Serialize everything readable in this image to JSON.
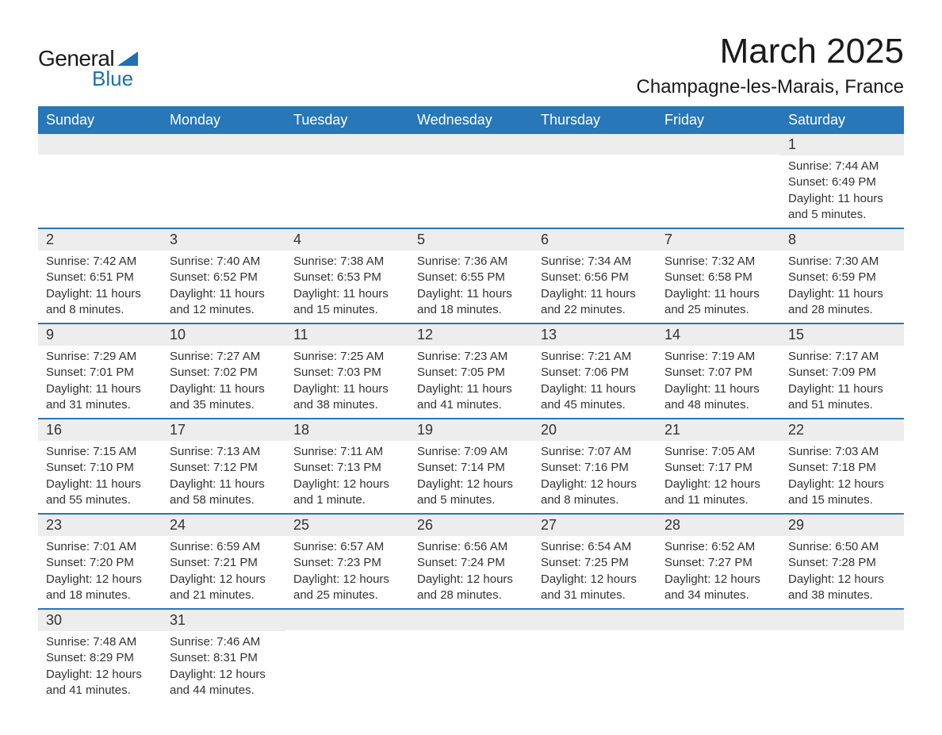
{
  "branding": {
    "word1": "General",
    "word2": "Blue",
    "triangle_color": "#1f6fb2",
    "text_dark": "#1a1a1a",
    "text_blue": "#1f6fb2"
  },
  "header": {
    "title": "March 2025",
    "location": "Champagne-les-Marais, France",
    "title_fontsize": 44,
    "location_fontsize": 24
  },
  "calendar": {
    "header_bg": "#2877b8",
    "header_fg": "#ffffff",
    "daynum_bg": "#ededed",
    "rule_color": "#2877b8",
    "body_fontsize": 15,
    "day_fontsize": 18,
    "days_of_week": [
      "Sunday",
      "Monday",
      "Tuesday",
      "Wednesday",
      "Thursday",
      "Friday",
      "Saturday"
    ],
    "weeks": [
      [
        {
          "day": "",
          "sunrise": "",
          "sunset": "",
          "daylight": ""
        },
        {
          "day": "",
          "sunrise": "",
          "sunset": "",
          "daylight": ""
        },
        {
          "day": "",
          "sunrise": "",
          "sunset": "",
          "daylight": ""
        },
        {
          "day": "",
          "sunrise": "",
          "sunset": "",
          "daylight": ""
        },
        {
          "day": "",
          "sunrise": "",
          "sunset": "",
          "daylight": ""
        },
        {
          "day": "",
          "sunrise": "",
          "sunset": "",
          "daylight": ""
        },
        {
          "day": "1",
          "sunrise": "Sunrise: 7:44 AM",
          "sunset": "Sunset: 6:49 PM",
          "daylight": "Daylight: 11 hours and 5 minutes."
        }
      ],
      [
        {
          "day": "2",
          "sunrise": "Sunrise: 7:42 AM",
          "sunset": "Sunset: 6:51 PM",
          "daylight": "Daylight: 11 hours and 8 minutes."
        },
        {
          "day": "3",
          "sunrise": "Sunrise: 7:40 AM",
          "sunset": "Sunset: 6:52 PM",
          "daylight": "Daylight: 11 hours and 12 minutes."
        },
        {
          "day": "4",
          "sunrise": "Sunrise: 7:38 AM",
          "sunset": "Sunset: 6:53 PM",
          "daylight": "Daylight: 11 hours and 15 minutes."
        },
        {
          "day": "5",
          "sunrise": "Sunrise: 7:36 AM",
          "sunset": "Sunset: 6:55 PM",
          "daylight": "Daylight: 11 hours and 18 minutes."
        },
        {
          "day": "6",
          "sunrise": "Sunrise: 7:34 AM",
          "sunset": "Sunset: 6:56 PM",
          "daylight": "Daylight: 11 hours and 22 minutes."
        },
        {
          "day": "7",
          "sunrise": "Sunrise: 7:32 AM",
          "sunset": "Sunset: 6:58 PM",
          "daylight": "Daylight: 11 hours and 25 minutes."
        },
        {
          "day": "8",
          "sunrise": "Sunrise: 7:30 AM",
          "sunset": "Sunset: 6:59 PM",
          "daylight": "Daylight: 11 hours and 28 minutes."
        }
      ],
      [
        {
          "day": "9",
          "sunrise": "Sunrise: 7:29 AM",
          "sunset": "Sunset: 7:01 PM",
          "daylight": "Daylight: 11 hours and 31 minutes."
        },
        {
          "day": "10",
          "sunrise": "Sunrise: 7:27 AM",
          "sunset": "Sunset: 7:02 PM",
          "daylight": "Daylight: 11 hours and 35 minutes."
        },
        {
          "day": "11",
          "sunrise": "Sunrise: 7:25 AM",
          "sunset": "Sunset: 7:03 PM",
          "daylight": "Daylight: 11 hours and 38 minutes."
        },
        {
          "day": "12",
          "sunrise": "Sunrise: 7:23 AM",
          "sunset": "Sunset: 7:05 PM",
          "daylight": "Daylight: 11 hours and 41 minutes."
        },
        {
          "day": "13",
          "sunrise": "Sunrise: 7:21 AM",
          "sunset": "Sunset: 7:06 PM",
          "daylight": "Daylight: 11 hours and 45 minutes."
        },
        {
          "day": "14",
          "sunrise": "Sunrise: 7:19 AM",
          "sunset": "Sunset: 7:07 PM",
          "daylight": "Daylight: 11 hours and 48 minutes."
        },
        {
          "day": "15",
          "sunrise": "Sunrise: 7:17 AM",
          "sunset": "Sunset: 7:09 PM",
          "daylight": "Daylight: 11 hours and 51 minutes."
        }
      ],
      [
        {
          "day": "16",
          "sunrise": "Sunrise: 7:15 AM",
          "sunset": "Sunset: 7:10 PM",
          "daylight": "Daylight: 11 hours and 55 minutes."
        },
        {
          "day": "17",
          "sunrise": "Sunrise: 7:13 AM",
          "sunset": "Sunset: 7:12 PM",
          "daylight": "Daylight: 11 hours and 58 minutes."
        },
        {
          "day": "18",
          "sunrise": "Sunrise: 7:11 AM",
          "sunset": "Sunset: 7:13 PM",
          "daylight": "Daylight: 12 hours and 1 minute."
        },
        {
          "day": "19",
          "sunrise": "Sunrise: 7:09 AM",
          "sunset": "Sunset: 7:14 PM",
          "daylight": "Daylight: 12 hours and 5 minutes."
        },
        {
          "day": "20",
          "sunrise": "Sunrise: 7:07 AM",
          "sunset": "Sunset: 7:16 PM",
          "daylight": "Daylight: 12 hours and 8 minutes."
        },
        {
          "day": "21",
          "sunrise": "Sunrise: 7:05 AM",
          "sunset": "Sunset: 7:17 PM",
          "daylight": "Daylight: 12 hours and 11 minutes."
        },
        {
          "day": "22",
          "sunrise": "Sunrise: 7:03 AM",
          "sunset": "Sunset: 7:18 PM",
          "daylight": "Daylight: 12 hours and 15 minutes."
        }
      ],
      [
        {
          "day": "23",
          "sunrise": "Sunrise: 7:01 AM",
          "sunset": "Sunset: 7:20 PM",
          "daylight": "Daylight: 12 hours and 18 minutes."
        },
        {
          "day": "24",
          "sunrise": "Sunrise: 6:59 AM",
          "sunset": "Sunset: 7:21 PM",
          "daylight": "Daylight: 12 hours and 21 minutes."
        },
        {
          "day": "25",
          "sunrise": "Sunrise: 6:57 AM",
          "sunset": "Sunset: 7:23 PM",
          "daylight": "Daylight: 12 hours and 25 minutes."
        },
        {
          "day": "26",
          "sunrise": "Sunrise: 6:56 AM",
          "sunset": "Sunset: 7:24 PM",
          "daylight": "Daylight: 12 hours and 28 minutes."
        },
        {
          "day": "27",
          "sunrise": "Sunrise: 6:54 AM",
          "sunset": "Sunset: 7:25 PM",
          "daylight": "Daylight: 12 hours and 31 minutes."
        },
        {
          "day": "28",
          "sunrise": "Sunrise: 6:52 AM",
          "sunset": "Sunset: 7:27 PM",
          "daylight": "Daylight: 12 hours and 34 minutes."
        },
        {
          "day": "29",
          "sunrise": "Sunrise: 6:50 AM",
          "sunset": "Sunset: 7:28 PM",
          "daylight": "Daylight: 12 hours and 38 minutes."
        }
      ],
      [
        {
          "day": "30",
          "sunrise": "Sunrise: 7:48 AM",
          "sunset": "Sunset: 8:29 PM",
          "daylight": "Daylight: 12 hours and 41 minutes."
        },
        {
          "day": "31",
          "sunrise": "Sunrise: 7:46 AM",
          "sunset": "Sunset: 8:31 PM",
          "daylight": "Daylight: 12 hours and 44 minutes."
        },
        {
          "day": "",
          "sunrise": "",
          "sunset": "",
          "daylight": ""
        },
        {
          "day": "",
          "sunrise": "",
          "sunset": "",
          "daylight": ""
        },
        {
          "day": "",
          "sunrise": "",
          "sunset": "",
          "daylight": ""
        },
        {
          "day": "",
          "sunrise": "",
          "sunset": "",
          "daylight": ""
        },
        {
          "day": "",
          "sunrise": "",
          "sunset": "",
          "daylight": ""
        }
      ]
    ]
  }
}
